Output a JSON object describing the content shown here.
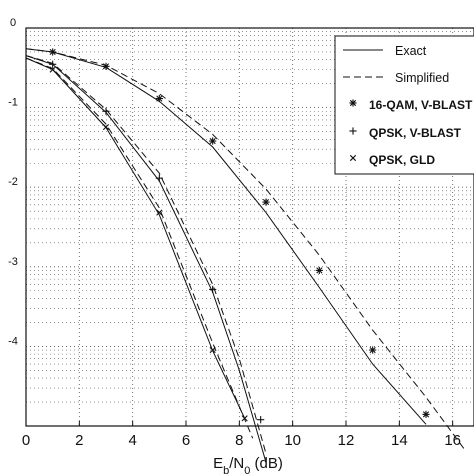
{
  "chart_data": {
    "type": "line",
    "xlabel_main": "E",
    "xlabel_sub1": "b",
    "xlabel_mid": "/N",
    "xlabel_sub2": "0",
    "xlabel_unit": " (dB)",
    "x_ticks": [
      0,
      2,
      4,
      6,
      8,
      10,
      12,
      14,
      16
    ],
    "xlim": [
      0,
      16.8
    ],
    "y_scale": "log",
    "ylim": [
      1e-05,
      1
    ],
    "y_tick_fragments": [
      {
        "exp": 0,
        "text": "0"
      },
      {
        "exp": -1,
        "text": "-1"
      },
      {
        "exp": -2,
        "text": "-2"
      },
      {
        "exp": -3,
        "text": "-3"
      },
      {
        "exp": -4,
        "text": "-4"
      }
    ],
    "grid": true,
    "legend_position": "top-right",
    "legend": [
      {
        "label": "Exact",
        "kind": "line",
        "dash": false
      },
      {
        "label": "Simplified",
        "kind": "line",
        "dash": true
      },
      {
        "label": "16-QAM, V-BLAST",
        "kind": "marker",
        "marker": "*"
      },
      {
        "label": "QPSK, V-BLAST",
        "kind": "marker",
        "marker": "+"
      },
      {
        "label": "QPSK, GLD",
        "kind": "marker",
        "marker": "x"
      }
    ],
    "series": [
      {
        "marker": "*",
        "exact": {
          "x": [
            0,
            1,
            3,
            5,
            7,
            9,
            11,
            13,
            15
          ],
          "y": [
            0.55,
            0.5,
            0.32,
            0.12,
            0.032,
            0.0048,
            0.00055,
            6e-05,
            1.05e-05
          ]
        },
        "simplified": {
          "x": [
            0,
            1,
            3,
            5,
            7,
            9,
            11,
            13,
            15,
            16.5
          ],
          "y": [
            0.55,
            0.5,
            0.34,
            0.15,
            0.046,
            0.0095,
            0.0014,
            0.00016,
            2.3e-05,
            4.8e-06
          ]
        }
      },
      {
        "marker": "+",
        "exact": {
          "x": [
            0,
            1,
            3,
            5,
            7,
            8,
            9
          ],
          "y": [
            0.45,
            0.35,
            0.087,
            0.012,
            0.00048,
            5e-05,
            3.5e-06
          ]
        },
        "simplified": {
          "x": [
            0,
            1,
            3,
            5,
            7,
            8,
            9
          ],
          "y": [
            0.45,
            0.36,
            0.095,
            0.015,
            0.0006,
            7e-05,
            4.5e-06
          ]
        }
      },
      {
        "marker": "x",
        "exact": {
          "x": [
            0,
            1,
            3,
            5,
            7,
            8.2
          ],
          "y": [
            0.42,
            0.3,
            0.056,
            0.0045,
            8.8e-05,
            1.25e-05
          ]
        },
        "simplified": {
          "x": [
            0,
            1,
            3,
            5,
            7,
            8.5
          ],
          "y": [
            0.42,
            0.31,
            0.062,
            0.0055,
            0.00011,
            7e-06
          ]
        }
      }
    ],
    "markers": [
      {
        "marker": "*",
        "x": [
          1,
          3,
          5,
          7,
          9,
          11,
          13,
          15
        ],
        "y": [
          0.5,
          0.33,
          0.13,
          0.038,
          0.0065,
          0.0009,
          9e-05,
          1.4e-05
        ]
      },
      {
        "marker": "+",
        "x": [
          1,
          3,
          5,
          7,
          8.8
        ],
        "y": [
          0.35,
          0.09,
          0.013,
          0.00052,
          1.2e-05
        ]
      },
      {
        "marker": "x",
        "x": [
          1,
          3,
          5,
          7,
          8.2
        ],
        "y": [
          0.3,
          0.057,
          0.0048,
          9e-05,
          1.25e-05
        ]
      }
    ]
  }
}
